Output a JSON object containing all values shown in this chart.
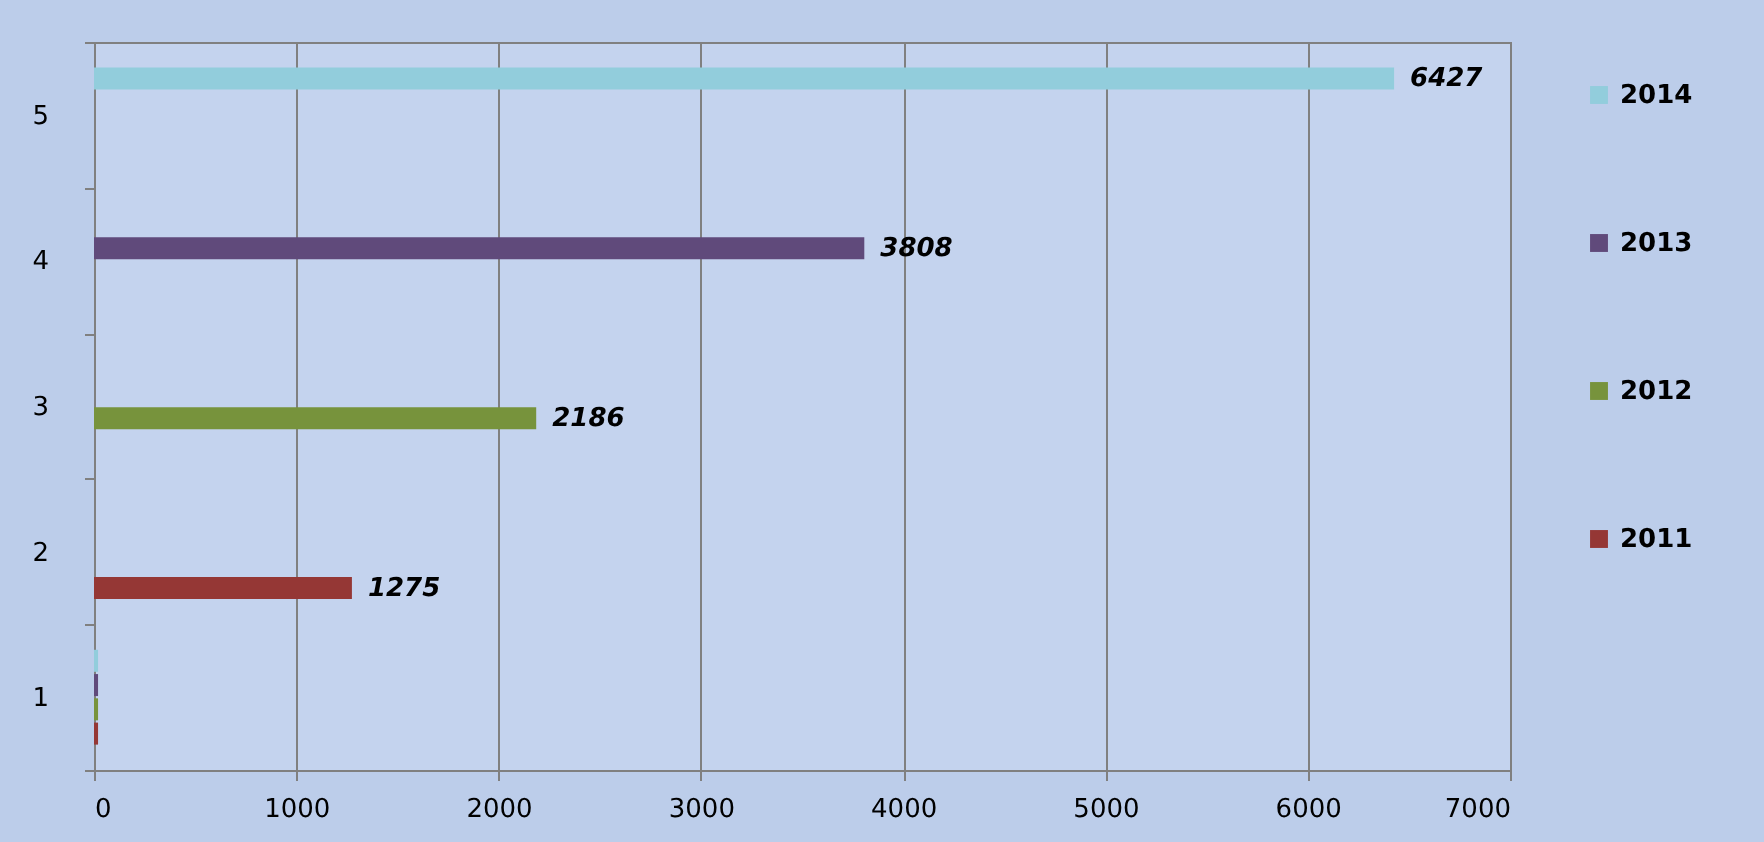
{
  "chart_data": {
    "type": "bar",
    "orientation": "horizontal",
    "categories": [
      "5",
      "4",
      "3",
      "2",
      "1"
    ],
    "series": [
      {
        "name": "2014",
        "color": "#92cddc",
        "values": [
          6427,
          0,
          0,
          0,
          20
        ],
        "value_labels": [
          "6427",
          null,
          null,
          null,
          null
        ]
      },
      {
        "name": "2013",
        "color": "#604a7b",
        "values": [
          0,
          3808,
          0,
          0,
          20
        ],
        "value_labels": [
          null,
          "3808",
          null,
          null,
          null
        ]
      },
      {
        "name": "2012",
        "color": "#77933c",
        "values": [
          0,
          0,
          2186,
          0,
          20
        ],
        "value_labels": [
          null,
          null,
          "2186",
          null,
          null
        ]
      },
      {
        "name": "2011",
        "color": "#953735",
        "values": [
          0,
          0,
          0,
          1275,
          20
        ],
        "value_labels": [
          null,
          null,
          null,
          "1275",
          null
        ]
      }
    ],
    "xlim": [
      0,
      7000
    ],
    "xticks": [
      0,
      1000,
      2000,
      3000,
      4000,
      5000,
      6000,
      7000
    ],
    "grid": "x",
    "legend": "right"
  }
}
